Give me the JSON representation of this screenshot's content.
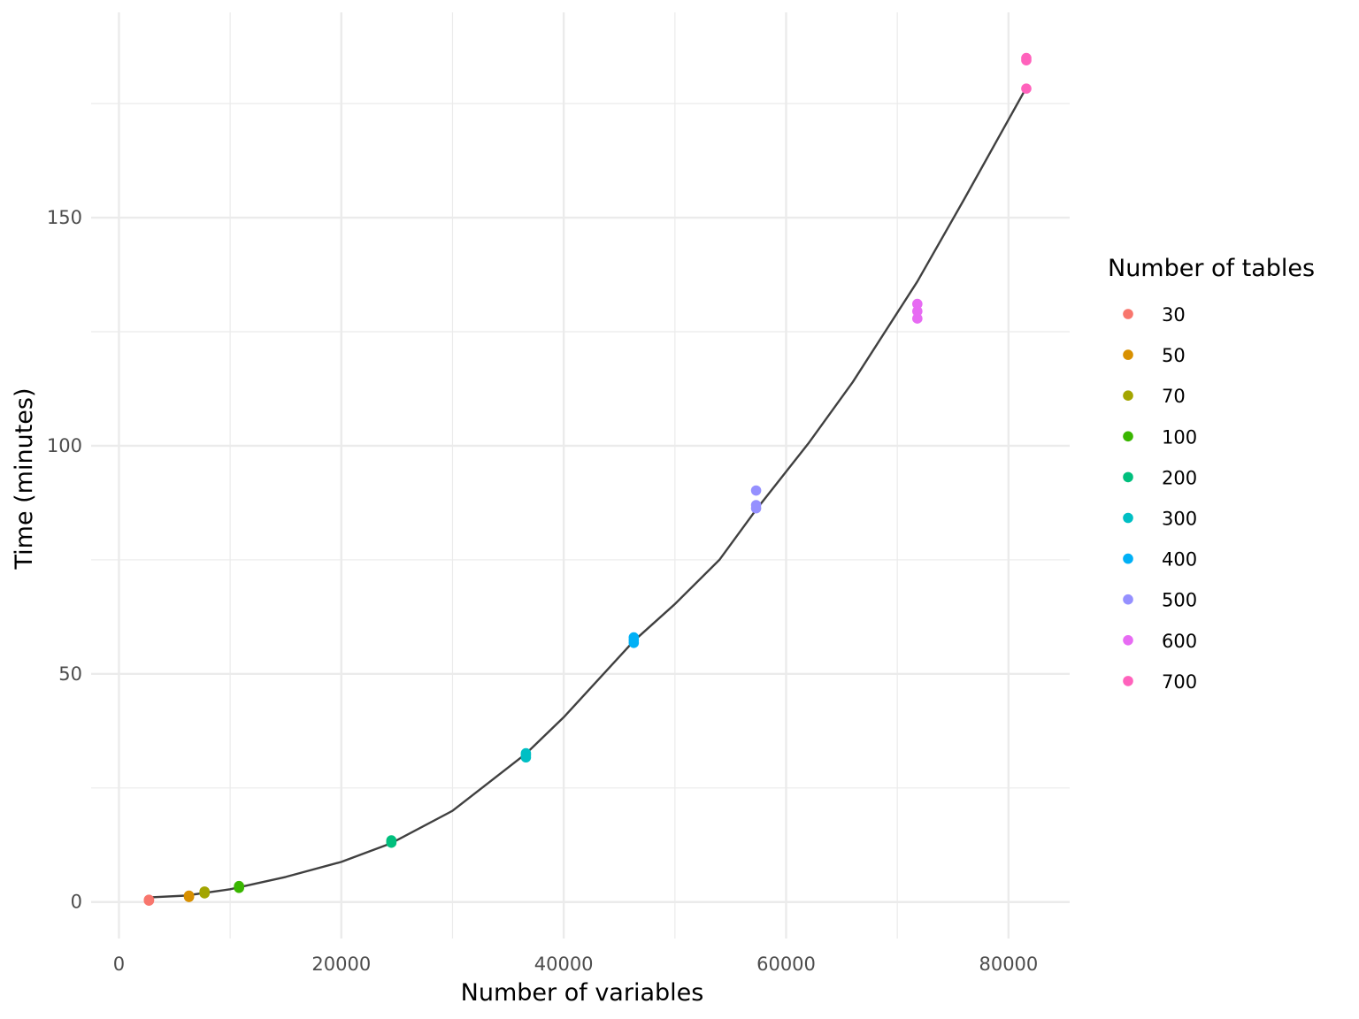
{
  "chart_data": {
    "type": "scatter",
    "xlabel": "Number of variables",
    "ylabel": "Time (minutes)",
    "xlim": [
      -2500,
      85500
    ],
    "ylim": [
      -8,
      195
    ],
    "x_ticks": [
      0,
      20000,
      40000,
      60000,
      80000
    ],
    "x_tick_labels": [
      "0",
      "20000",
      "40000",
      "60000",
      "80000"
    ],
    "x_minor_ticks": [
      10000,
      30000,
      50000,
      70000
    ],
    "y_ticks": [
      0,
      50,
      100,
      150
    ],
    "y_tick_labels": [
      "0",
      "50",
      "100",
      "150"
    ],
    "y_minor_ticks": [
      25,
      75,
      125,
      175
    ],
    "grid": true,
    "legend": {
      "title": "Number of tables",
      "position": "right"
    },
    "series": [
      {
        "name": "30",
        "color": "#F8766D",
        "points": [
          [
            2700,
            0.3
          ],
          [
            2700,
            0.5
          ],
          [
            2700,
            0.4
          ]
        ]
      },
      {
        "name": "50",
        "color": "#D89000",
        "points": [
          [
            6300,
            1.1
          ],
          [
            6300,
            1.4
          ],
          [
            6300,
            1.2
          ]
        ]
      },
      {
        "name": "70",
        "color": "#A3A500",
        "points": [
          [
            7700,
            1.9
          ],
          [
            7700,
            2.3
          ],
          [
            7700,
            2.1
          ]
        ]
      },
      {
        "name": "100",
        "color": "#39B600",
        "points": [
          [
            10800,
            3.1
          ],
          [
            10800,
            3.5
          ],
          [
            10800,
            3.3
          ]
        ]
      },
      {
        "name": "200",
        "color": "#00BF7D",
        "points": [
          [
            24500,
            13.0
          ],
          [
            24500,
            13.5
          ],
          [
            24500,
            13.2
          ]
        ]
      },
      {
        "name": "300",
        "color": "#00BFC4",
        "points": [
          [
            36600,
            31.7
          ],
          [
            36600,
            32.6
          ],
          [
            36600,
            32.2
          ]
        ]
      },
      {
        "name": "400",
        "color": "#00B0F6",
        "points": [
          [
            46300,
            56.8
          ],
          [
            46300,
            58.0
          ],
          [
            46300,
            57.4
          ]
        ]
      },
      {
        "name": "500",
        "color": "#9590FF",
        "points": [
          [
            57300,
            86.3
          ],
          [
            57300,
            87.0
          ],
          [
            57300,
            90.2
          ]
        ]
      },
      {
        "name": "600",
        "color": "#E76BF3",
        "points": [
          [
            71800,
            127.9
          ],
          [
            71800,
            129.5
          ],
          [
            71800,
            131.1
          ]
        ]
      },
      {
        "name": "700",
        "color": "#FF62BC",
        "points": [
          [
            81600,
            178.3
          ],
          [
            81600,
            184.5
          ],
          [
            81600,
            185.0
          ]
        ]
      }
    ],
    "fit_line": {
      "color": "#404040",
      "points": [
        [
          2700,
          1.0
        ],
        [
          6000,
          1.4
        ],
        [
          10000,
          2.8
        ],
        [
          15000,
          5.5
        ],
        [
          20000,
          8.8
        ],
        [
          24500,
          12.9
        ],
        [
          30000,
          20.0
        ],
        [
          36600,
          32.5
        ],
        [
          40000,
          40.5
        ],
        [
          46300,
          57.2
        ],
        [
          50000,
          65.3
        ],
        [
          54000,
          75.0
        ],
        [
          57300,
          86.0
        ],
        [
          62000,
          100.5
        ],
        [
          66000,
          114.0
        ],
        [
          71800,
          136.0
        ],
        [
          76000,
          154.0
        ],
        [
          81600,
          178.5
        ]
      ]
    }
  }
}
